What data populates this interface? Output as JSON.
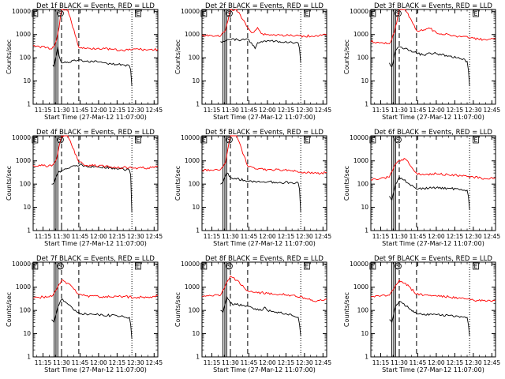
{
  "figure": {
    "background": "#ffffff",
    "series_colors": {
      "Events": "#000000",
      "LLD": "#ff0000"
    },
    "marker_line_color": "#000000"
  },
  "chart_data": [
    {
      "type": "line",
      "title": "Det 1f BLACK = Events, RED = LLD",
      "xlabel": "Start Time (27-Mar-12 11:07:00)",
      "ylabel": "Counts/sec",
      "yscale": "log",
      "ylim": [
        1,
        12000
      ],
      "xlim": [
        "11:07",
        "12:48"
      ],
      "xticks": [
        "11:15",
        "11:30",
        "11:45",
        "12:00",
        "12:15",
        "12:30",
        "12:45"
      ],
      "yticks": [
        "1",
        "10",
        "100",
        "1000",
        "10000"
      ],
      "annotations": [
        "E",
        "S",
        "E"
      ],
      "markers": {
        "solid": [
          "11:24",
          "11:25:30",
          "11:27"
        ],
        "dashed": [
          "11:30",
          "11:44"
        ],
        "dotted": [
          "12:27"
        ]
      },
      "series": [
        {
          "name": "Events",
          "x": [
            "11:23",
            "11:24",
            "11:27",
            "11:28",
            "11:30",
            "11:45",
            "11:50",
            "12:00",
            "12:10",
            "12:20",
            "12:25",
            "12:26",
            "12:27"
          ],
          "y": [
            50,
            40,
            300,
            120,
            60,
            80,
            70,
            65,
            55,
            50,
            45,
            30,
            6
          ]
        },
        {
          "name": "LLD",
          "x": [
            "11:07",
            "11:12",
            "11:18",
            "11:22",
            "11:24",
            "11:26",
            "11:28",
            "11:30",
            "11:35",
            "11:44",
            "11:50",
            "12:00",
            "12:10",
            "12:20",
            "12:30",
            "12:40",
            "12:48"
          ],
          "y": [
            330,
            300,
            280,
            240,
            300,
            600,
            2000,
            12000,
            12000,
            280,
            250,
            260,
            230,
            200,
            240,
            220,
            230
          ]
        }
      ]
    },
    {
      "type": "line",
      "title": "Det 2f BLACK = Events, RED = LLD",
      "xlabel": "Start Time (27-Mar-12 11:07:00)",
      "ylabel": "Counts/sec",
      "yscale": "log",
      "ylim": [
        1,
        12000
      ],
      "xlim": [
        "11:07",
        "12:48"
      ],
      "xticks": [
        "11:15",
        "11:30",
        "11:45",
        "12:00",
        "12:15",
        "12:30",
        "12:45"
      ],
      "yticks": [
        "1",
        "10",
        "100",
        "1000",
        "10000"
      ],
      "annotations": [
        "E",
        "S",
        "E"
      ],
      "markers": {
        "solid": [
          "11:24",
          "11:25:30",
          "11:27"
        ],
        "dashed": [
          "11:30",
          "11:44"
        ],
        "dotted": [
          "12:27"
        ]
      },
      "series": [
        {
          "name": "Events",
          "x": [
            "11:22",
            "11:24",
            "11:27",
            "11:30",
            "11:45",
            "11:48",
            "11:50",
            "11:52",
            "11:55",
            "12:00",
            "12:10",
            "12:20",
            "12:25",
            "12:26",
            "12:27"
          ],
          "y": [
            500,
            520,
            600,
            600,
            600,
            350,
            250,
            450,
            500,
            550,
            500,
            450,
            420,
            250,
            60
          ]
        },
        {
          "name": "LLD",
          "x": [
            "11:07",
            "11:15",
            "11:22",
            "11:26",
            "11:30",
            "11:35",
            "11:44",
            "11:48",
            "11:52",
            "11:55",
            "12:00",
            "12:10",
            "12:20",
            "12:30",
            "12:40",
            "12:48"
          ],
          "y": [
            900,
            900,
            850,
            1500,
            12000,
            12000,
            2000,
            1200,
            2000,
            1100,
            1000,
            950,
            900,
            850,
            900,
            950
          ]
        }
      ]
    },
    {
      "type": "line",
      "title": "Det 3f BLACK = Events, RED = LLD",
      "xlabel": "Start Time (27-Mar-12 11:07:00)",
      "ylabel": "Counts/sec",
      "yscale": "log",
      "ylim": [
        1,
        12000
      ],
      "xlim": [
        "11:07",
        "12:48"
      ],
      "xticks": [
        "11:15",
        "11:30",
        "11:45",
        "12:00",
        "12:15",
        "12:30",
        "12:45"
      ],
      "yticks": [
        "1",
        "10",
        "100",
        "1000",
        "10000"
      ],
      "annotations": [
        "E",
        "S",
        "E"
      ],
      "markers": {
        "solid": [
          "11:24",
          "11:25:30",
          "11:27"
        ],
        "dashed": [
          "11:30",
          "11:44"
        ],
        "dotted": [
          "12:27"
        ]
      },
      "series": [
        {
          "name": "Events",
          "x": [
            "11:22",
            "11:24",
            "11:27",
            "11:30",
            "11:45",
            "11:50",
            "11:55",
            "12:00",
            "12:10",
            "12:20",
            "12:25",
            "12:26",
            "12:27"
          ],
          "y": [
            60,
            40,
            200,
            300,
            150,
            130,
            160,
            150,
            120,
            90,
            70,
            30,
            6
          ]
        },
        {
          "name": "LLD",
          "x": [
            "11:07",
            "11:15",
            "11:22",
            "11:26",
            "11:30",
            "11:35",
            "11:44",
            "11:50",
            "11:55",
            "12:00",
            "12:10",
            "12:20",
            "12:30",
            "12:40",
            "12:48"
          ],
          "y": [
            500,
            450,
            400,
            1200,
            12000,
            12000,
            1500,
            1600,
            1800,
            1200,
            1000,
            800,
            700,
            600,
            650
          ]
        }
      ]
    },
    {
      "type": "line",
      "title": "Det 4f BLACK = Events, RED = LLD",
      "xlabel": "Start Time (27-Mar-12 11:07:00)",
      "ylabel": "Counts/sec",
      "yscale": "log",
      "ylim": [
        1,
        12000
      ],
      "xlim": [
        "11:07",
        "12:48"
      ],
      "xticks": [
        "11:15",
        "11:30",
        "11:45",
        "12:00",
        "12:15",
        "12:30",
        "12:45"
      ],
      "yticks": [
        "1",
        "10",
        "100",
        "1000",
        "10000"
      ],
      "annotations": [
        "E",
        "S",
        "E"
      ],
      "markers": {
        "solid": [
          "11:24",
          "11:25:30",
          "11:27"
        ],
        "dashed": [
          "11:30",
          "11:44"
        ],
        "dotted": [
          "12:27"
        ]
      },
      "series": [
        {
          "name": "Events",
          "x": [
            "11:22",
            "11:24",
            "11:27",
            "11:30",
            "11:45",
            "11:50",
            "12:00",
            "12:10",
            "12:20",
            "12:25",
            "12:26",
            "12:27"
          ],
          "y": [
            100,
            110,
            300,
            400,
            700,
            600,
            550,
            500,
            450,
            400,
            250,
            6
          ]
        },
        {
          "name": "LLD",
          "x": [
            "11:07",
            "11:15",
            "11:22",
            "11:26",
            "11:30",
            "11:35",
            "11:44",
            "11:50",
            "12:00",
            "12:10",
            "12:20",
            "12:30",
            "12:40",
            "12:48"
          ],
          "y": [
            650,
            620,
            600,
            1200,
            12000,
            12000,
            900,
            650,
            600,
            550,
            520,
            500,
            500,
            550
          ]
        }
      ]
    },
    {
      "type": "line",
      "title": "Det 5f BLACK = Events, RED = LLD",
      "xlabel": "Start Time (27-Mar-12 11:07:00)",
      "ylabel": "Counts/sec",
      "yscale": "log",
      "ylim": [
        1,
        12000
      ],
      "xlim": [
        "11:07",
        "12:48"
      ],
      "xticks": [
        "11:15",
        "11:30",
        "11:45",
        "12:00",
        "12:15",
        "12:30",
        "12:45"
      ],
      "yticks": [
        "1",
        "10",
        "100",
        "1000",
        "10000"
      ],
      "annotations": [
        "E",
        "S",
        "E"
      ],
      "markers": {
        "solid": [
          "11:24",
          "11:25:30",
          "11:27"
        ],
        "dashed": [
          "11:30",
          "11:44"
        ],
        "dotted": [
          "12:27"
        ]
      },
      "series": [
        {
          "name": "Events",
          "x": [
            "11:22",
            "11:24",
            "11:27",
            "11:30",
            "11:45",
            "11:50",
            "12:00",
            "12:10",
            "12:20",
            "12:25",
            "12:26",
            "12:27"
          ],
          "y": [
            100,
            120,
            300,
            200,
            130,
            130,
            125,
            120,
            115,
            110,
            60,
            6
          ]
        },
        {
          "name": "LLD",
          "x": [
            "11:07",
            "11:15",
            "11:22",
            "11:26",
            "11:30",
            "11:35",
            "11:44",
            "11:50",
            "12:00",
            "12:10",
            "12:20",
            "12:30",
            "12:40",
            "12:48"
          ],
          "y": [
            380,
            400,
            420,
            800,
            12000,
            12000,
            600,
            450,
            420,
            400,
            380,
            330,
            290,
            310
          ]
        }
      ]
    },
    {
      "type": "line",
      "title": "Det 6f BLACK = Events, RED = LLD",
      "xlabel": "Start Time (27-Mar-12 11:07:00)",
      "ylabel": "Counts/sec",
      "yscale": "log",
      "ylim": [
        1,
        12000
      ],
      "xlim": [
        "11:07",
        "12:48"
      ],
      "xticks": [
        "11:15",
        "11:30",
        "11:45",
        "12:00",
        "12:15",
        "12:30",
        "12:45"
      ],
      "yticks": [
        "1",
        "10",
        "100",
        "1000",
        "10000"
      ],
      "annotations": [
        "E",
        "S",
        "E"
      ],
      "markers": {
        "solid": [
          "11:24",
          "11:25:30",
          "11:27"
        ],
        "dashed": [
          "11:30",
          "11:44"
        ],
        "dotted": [
          "12:27"
        ]
      },
      "series": [
        {
          "name": "Events",
          "x": [
            "11:22",
            "11:24",
            "11:27",
            "11:30",
            "11:45",
            "11:50",
            "12:00",
            "12:10",
            "12:20",
            "12:25",
            "12:26",
            "12:27"
          ],
          "y": [
            30,
            20,
            100,
            200,
            60,
            65,
            70,
            65,
            60,
            55,
            30,
            8
          ]
        },
        {
          "name": "LLD",
          "x": [
            "11:07",
            "11:15",
            "11:22",
            "11:26",
            "11:30",
            "11:35",
            "11:44",
            "11:50",
            "12:00",
            "12:10",
            "12:20",
            "12:30",
            "12:40",
            "12:48"
          ],
          "y": [
            150,
            180,
            200,
            600,
            1000,
            1200,
            300,
            250,
            280,
            250,
            230,
            200,
            170,
            190
          ]
        }
      ]
    },
    {
      "type": "line",
      "title": "Det 7f BLACK = Events, RED = LLD",
      "xlabel": "Start Time (27-Mar-12 11:07:00)",
      "ylabel": "Counts/sec",
      "yscale": "log",
      "ylim": [
        1,
        12000
      ],
      "xlim": [
        "11:07",
        "12:48"
      ],
      "xticks": [
        "11:15",
        "11:30",
        "11:45",
        "12:00",
        "12:15",
        "12:30",
        "12:45"
      ],
      "yticks": [
        "1",
        "10",
        "100",
        "1000",
        "10000"
      ],
      "annotations": [
        "E",
        "S",
        "E"
      ],
      "markers": {
        "solid": [
          "11:24",
          "11:25:30",
          "11:27"
        ],
        "dashed": [
          "11:30",
          "11:44"
        ],
        "dotted": [
          "12:27"
        ]
      },
      "series": [
        {
          "name": "Events",
          "x": [
            "11:22",
            "11:24",
            "11:27",
            "11:30",
            "11:45",
            "11:50",
            "12:00",
            "12:10",
            "12:20",
            "12:25",
            "12:26",
            "12:27"
          ],
          "y": [
            40,
            30,
            150,
            300,
            70,
            70,
            65,
            60,
            55,
            50,
            25,
            6
          ]
        },
        {
          "name": "LLD",
          "x": [
            "11:07",
            "11:15",
            "11:22",
            "11:26",
            "11:30",
            "11:35",
            "11:44",
            "11:50",
            "12:00",
            "12:10",
            "12:20",
            "12:30",
            "12:40",
            "12:48"
          ],
          "y": [
            350,
            380,
            400,
            800,
            2000,
            1500,
            500,
            420,
            400,
            380,
            400,
            360,
            380,
            420
          ]
        }
      ]
    },
    {
      "type": "line",
      "title": "Det 8f BLACK = Events, RED = LLD",
      "xlabel": "Start Time (27-Mar-12 11:07:00)",
      "ylabel": "Counts/sec",
      "yscale": "log",
      "ylim": [
        1,
        12000
      ],
      "xlim": [
        "11:07",
        "12:48"
      ],
      "xticks": [
        "11:15",
        "11:30",
        "11:45",
        "12:00",
        "12:15",
        "12:30",
        "12:45"
      ],
      "yticks": [
        "1",
        "10",
        "100",
        "1000",
        "10000"
      ],
      "annotations": [
        "E",
        "S",
        "E"
      ],
      "markers": {
        "solid": [
          "11:24",
          "11:25:30",
          "11:27"
        ],
        "dashed": [
          "11:30",
          "11:44"
        ],
        "dotted": [
          "12:27"
        ]
      },
      "series": [
        {
          "name": "Events",
          "x": [
            "11:22",
            "11:24",
            "11:27",
            "11:30",
            "11:45",
            "11:50",
            "11:55",
            "11:58",
            "12:00",
            "12:10",
            "12:20",
            "12:25",
            "12:26",
            "12:27"
          ],
          "y": [
            100,
            80,
            400,
            200,
            150,
            120,
            100,
            140,
            100,
            80,
            60,
            50,
            25,
            8
          ]
        },
        {
          "name": "LLD",
          "x": [
            "11:07",
            "11:15",
            "11:22",
            "11:26",
            "11:30",
            "11:35",
            "11:44",
            "11:50",
            "12:00",
            "12:10",
            "12:20",
            "12:30",
            "12:40",
            "12:48"
          ],
          "y": [
            400,
            420,
            450,
            1200,
            3000,
            2000,
            700,
            600,
            550,
            500,
            450,
            350,
            250,
            300
          ]
        }
      ]
    },
    {
      "type": "line",
      "title": "Det 9f BLACK = Events, RED = LLD",
      "xlabel": "Start Time (27-Mar-12 11:07:00)",
      "ylabel": "Counts/sec",
      "yscale": "log",
      "ylim": [
        1,
        12000
      ],
      "xlim": [
        "11:07",
        "12:48"
      ],
      "xticks": [
        "11:15",
        "11:30",
        "11:45",
        "12:00",
        "12:15",
        "12:30",
        "12:45"
      ],
      "yticks": [
        "1",
        "10",
        "100",
        "1000",
        "10000"
      ],
      "annotations": [
        "E",
        "S",
        "E"
      ],
      "markers": {
        "solid": [
          "11:24",
          "11:25:30",
          "11:27"
        ],
        "dashed": [
          "11:30",
          "11:44"
        ],
        "dotted": [
          "12:27"
        ]
      },
      "series": [
        {
          "name": "Events",
          "x": [
            "11:22",
            "11:24",
            "11:27",
            "11:30",
            "11:45",
            "11:50",
            "12:00",
            "12:10",
            "12:20",
            "12:25",
            "12:26",
            "12:27"
          ],
          "y": [
            40,
            30,
            150,
            250,
            70,
            70,
            65,
            60,
            55,
            50,
            25,
            8
          ]
        },
        {
          "name": "LLD",
          "x": [
            "11:07",
            "11:15",
            "11:22",
            "11:26",
            "11:30",
            "11:35",
            "11:44",
            "11:50",
            "12:00",
            "12:10",
            "12:20",
            "12:30",
            "12:40",
            "12:48"
          ],
          "y": [
            380,
            420,
            450,
            900,
            2000,
            1500,
            500,
            450,
            420,
            380,
            330,
            280,
            250,
            280
          ]
        }
      ]
    }
  ]
}
